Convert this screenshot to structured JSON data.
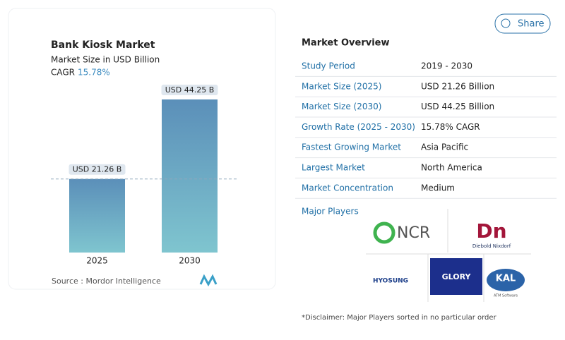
{
  "share": "Share",
  "chart_data": {
    "type": "bar",
    "title": "Bank Kiosk Market",
    "subtitle": "Market Size in USD Billion",
    "cagr_label": "CAGR",
    "cagr_value": "15.78%",
    "categories": [
      "2025",
      "2030"
    ],
    "values": [
      21.26,
      44.25
    ],
    "value_labels": [
      "USD 21.26 B",
      "USD 44.25 B"
    ],
    "source": "Source :  Mordor Intelligence"
  },
  "overview": {
    "title": "Market Overview",
    "rows": [
      [
        "Study Period",
        "2019 - 2030"
      ],
      [
        "Market Size (2025)",
        "USD 21.26 Billion"
      ],
      [
        "Market Size (2030)",
        "USD 44.25 Billion"
      ],
      [
        "Growth Rate (2025 - 2030)",
        "15.78% CAGR"
      ],
      [
        "Fastest Growing Market",
        "Asia Pacific"
      ],
      [
        "Largest Market",
        "North America"
      ],
      [
        "Market Concentration",
        "Medium"
      ]
    ]
  },
  "players": {
    "title": "Major Players",
    "logos": [
      "NCR",
      "Diebold Nixdorf",
      "HYOSUNG",
      "GLORY",
      "KAL",
      "ATM Software"
    ],
    "disclaimer": "*Disclaimer: Major Players sorted in no particular order"
  }
}
